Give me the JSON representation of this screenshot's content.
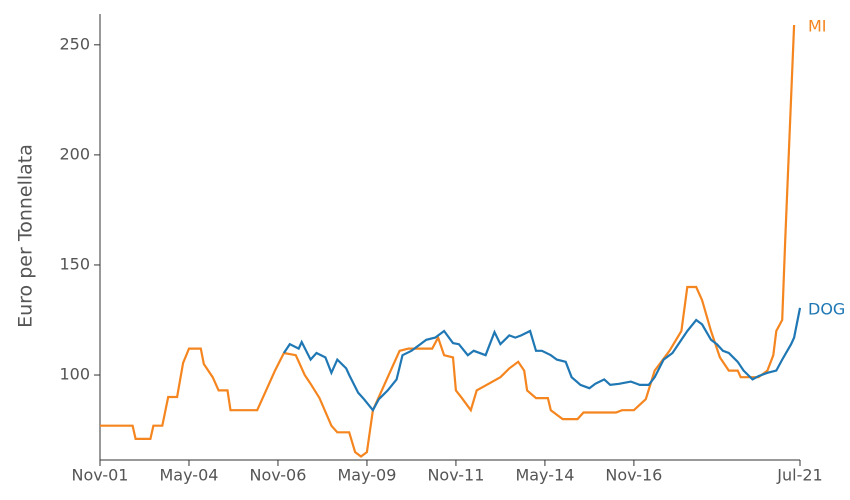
{
  "chart_data": {
    "type": "line",
    "y_label": "Euro per Tonnellata",
    "xlim": [
      "Nov-01",
      "Jul-21"
    ],
    "xticks": [
      "Nov-01",
      "May-04",
      "Nov-06",
      "May-09",
      "Nov-11",
      "May-14",
      "Nov-16",
      "Jul-21"
    ],
    "ylim": [
      61.4,
      264
    ],
    "yticks": [
      100,
      150,
      200,
      250
    ],
    "series": [
      {
        "name": "MI",
        "color": "#f5851f",
        "x": [
          "Nov-01",
          "Oct-02",
          "Nov-02",
          "Apr-03",
          "May-03",
          "Aug-03",
          "Oct-03",
          "Jan-04",
          "Mar-04",
          "May-04",
          "Sep-04",
          "Oct-04",
          "Jan-05",
          "Mar-05",
          "Jun-05",
          "Jul-05",
          "Apr-06",
          "Jul-06",
          "Oct-06",
          "Jan-07",
          "May-07",
          "Aug-07",
          "Oct-07",
          "Jan-08",
          "May-08",
          "Jul-08",
          "Nov-08",
          "Jan-09",
          "Mar-09",
          "May-09",
          "Jul-09",
          "Oct-09",
          "Jan-10",
          "Apr-10",
          "Jul-10",
          "Mar-11",
          "May-11",
          "Jul-11",
          "Oct-11",
          "Nov-11",
          "Jan-12",
          "Apr-12",
          "Jun-12",
          "Oct-12",
          "Feb-13",
          "May-13",
          "Aug-13",
          "Oct-13",
          "Nov-13",
          "Feb-14",
          "Jun-14",
          "Jul-14",
          "Nov-14",
          "Apr-15",
          "Jun-15",
          "May-16",
          "Jul-16",
          "Nov-16",
          "Mar-17",
          "Jun-17",
          "Nov-17",
          "Mar-18",
          "May-18",
          "Aug-18",
          "Oct-18",
          "Jan-19",
          "Apr-19",
          "Jul-19",
          "Oct-19",
          "Nov-19",
          "May-20",
          "Aug-20",
          "Oct-20",
          "Nov-20",
          "Jan-21",
          "Feb-21",
          "May-21"
        ],
        "values": [
          77,
          77,
          71,
          71,
          77,
          77,
          90,
          90,
          105.5,
          112,
          112,
          105,
          99,
          93,
          93,
          84,
          84,
          93,
          102,
          110,
          109,
          100,
          96,
          89.5,
          77,
          74,
          74,
          65,
          63,
          65,
          84,
          93,
          102,
          111,
          112,
          112,
          117,
          109,
          108,
          93,
          89.5,
          84,
          93,
          96,
          99,
          103,
          106,
          102,
          93,
          89.5,
          89.5,
          84,
          80,
          80,
          83,
          83,
          84,
          84,
          89,
          102,
          111,
          120,
          140,
          140,
          134,
          120,
          108,
          102,
          102,
          99,
          99,
          102,
          109,
          120,
          125,
          161,
          259
        ]
      },
      {
        "name": "DOG",
        "color": "#1f77b4",
        "x": [
          "Jan-07",
          "Mar-07",
          "Jun-07",
          "Jul-07",
          "Oct-07",
          "Dec-07",
          "Mar-08",
          "May-08",
          "Jul-08",
          "Oct-08",
          "Nov-08",
          "Feb-09",
          "Apr-09",
          "Jul-09",
          "Sep-09",
          "Dec-09",
          "Mar-10",
          "May-10",
          "Aug-10",
          "Nov-10",
          "Jan-11",
          "Apr-11",
          "Jul-11",
          "Oct-11",
          "Dec-11",
          "Mar-12",
          "May-12",
          "Sep-12",
          "Dec-12",
          "Feb-13",
          "May-13",
          "Jul-13",
          "Sep-13",
          "Dec-13",
          "Feb-14",
          "Apr-14",
          "Jul-14",
          "Sep-14",
          "Dec-14",
          "Feb-15",
          "May-15",
          "Aug-15",
          "Oct-15",
          "Jan-16",
          "Mar-16",
          "Jun-16",
          "Oct-16",
          "Jan-17",
          "Apr-17",
          "Jun-17",
          "Sep-17",
          "Dec-17",
          "Mar-18",
          "May-18",
          "Aug-18",
          "Oct-18",
          "Jan-19",
          "Mar-19",
          "May-19",
          "Jul-19",
          "Oct-19",
          "Dec-19",
          "Mar-20",
          "May-20",
          "Aug-20",
          "Nov-20",
          "Jan-21",
          "Apr-21",
          "May-21",
          "Jul-21"
        ],
        "values": [
          110,
          114,
          112,
          115,
          107,
          110,
          108,
          101,
          107,
          103,
          100,
          92,
          89,
          84,
          89,
          93,
          98,
          109,
          111,
          114,
          116,
          117,
          120,
          114.5,
          114,
          109,
          111,
          109,
          119.5,
          114,
          118,
          117,
          118,
          120,
          111,
          111,
          109,
          107,
          106,
          99,
          95.5,
          94,
          96,
          98,
          95.5,
          96,
          97,
          95.5,
          95.5,
          99,
          107,
          110,
          116,
          120,
          125,
          123,
          116,
          114,
          111,
          110,
          106,
          102,
          98,
          99.5,
          101,
          102,
          107,
          114,
          117,
          130.5
        ]
      }
    ]
  }
}
